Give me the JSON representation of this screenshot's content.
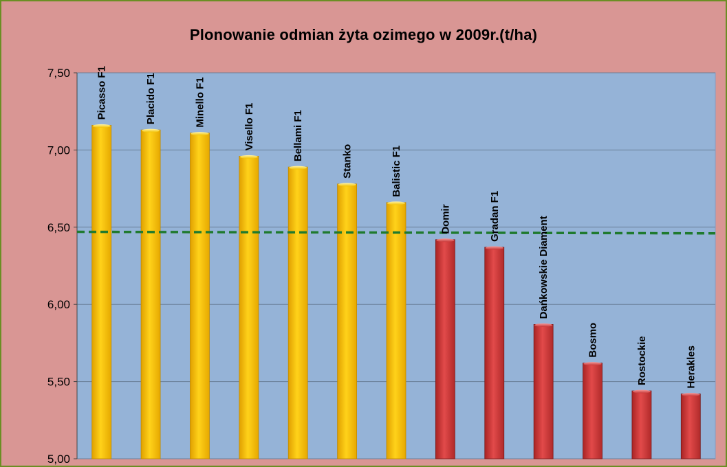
{
  "chart_data": {
    "type": "bar",
    "title": "Plonowanie odmian żyta ozimego w 2009r.(t/ha)",
    "xlabel": "",
    "ylabel": "",
    "ylim": [
      5.0,
      7.5
    ],
    "yticks": [
      "5,00",
      "5,50",
      "6,00",
      "6,50",
      "7,00",
      "7,50"
    ],
    "ytick_values": [
      5.0,
      5.5,
      6.0,
      6.5,
      7.0,
      7.5
    ],
    "grid": true,
    "categories": [
      "Picasso F1",
      "Placido F1",
      "Minello F1",
      "Visello F1",
      "Bellami F1",
      "Stanko",
      "Balistic F1",
      "Domir",
      "Gradan F1",
      "Dańkowskie Diament",
      "Bosmo",
      "Rostockie",
      "Herakles"
    ],
    "values": [
      7.16,
      7.13,
      7.11,
      6.96,
      6.89,
      6.78,
      6.66,
      6.42,
      6.37,
      5.87,
      5.62,
      5.44,
      5.42
    ],
    "reference_line": {
      "value_start": 6.47,
      "value_end": 6.46,
      "style": "dashed",
      "color": "#1f7a2e"
    },
    "colors": {
      "above_average": "#ffc000",
      "below_average": "#d23c3c",
      "plot_background": "#95b3d7",
      "outer_background": "#d99694"
    }
  }
}
